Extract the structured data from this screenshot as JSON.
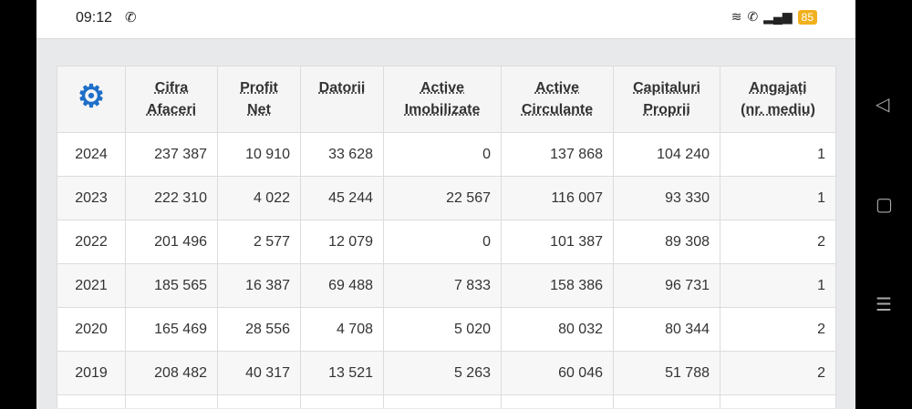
{
  "status": {
    "time": "09:12",
    "battery": "85"
  },
  "table": {
    "headers": [
      {
        "l1": "Cifra",
        "l2": "Afaceri"
      },
      {
        "l1": "Profit",
        "l2": "Net"
      },
      {
        "l1": "Datorii",
        "l2": ""
      },
      {
        "l1": "Active",
        "l2": "Imobilizate"
      },
      {
        "l1": "Active",
        "l2": "Circulante"
      },
      {
        "l1": "Capitaluri",
        "l2": "Proprii"
      },
      {
        "l1": "Angajați",
        "l2": "(nr. mediu)"
      }
    ],
    "rows": [
      [
        "2024",
        "237 387",
        "10 910",
        "33 628",
        "0",
        "137 868",
        "104 240",
        "1"
      ],
      [
        "2023",
        "222 310",
        "4 022",
        "45 244",
        "22 567",
        "116 007",
        "93 330",
        "1"
      ],
      [
        "2022",
        "201 496",
        "2 577",
        "12 079",
        "0",
        "101 387",
        "89 308",
        "2"
      ],
      [
        "2021",
        "185 565",
        "16 387",
        "69 488",
        "7 833",
        "158 386",
        "96 731",
        "1"
      ],
      [
        "2020",
        "165 469",
        "28 556",
        "4 708",
        "5 020",
        "80 032",
        "80 344",
        "2"
      ],
      [
        "2019",
        "208 482",
        "40 317",
        "13 521",
        "5 263",
        "60 046",
        "51 788",
        "2"
      ]
    ]
  },
  "colors": {
    "gear": "#1f6fc9",
    "battery": "#f2b01e"
  }
}
